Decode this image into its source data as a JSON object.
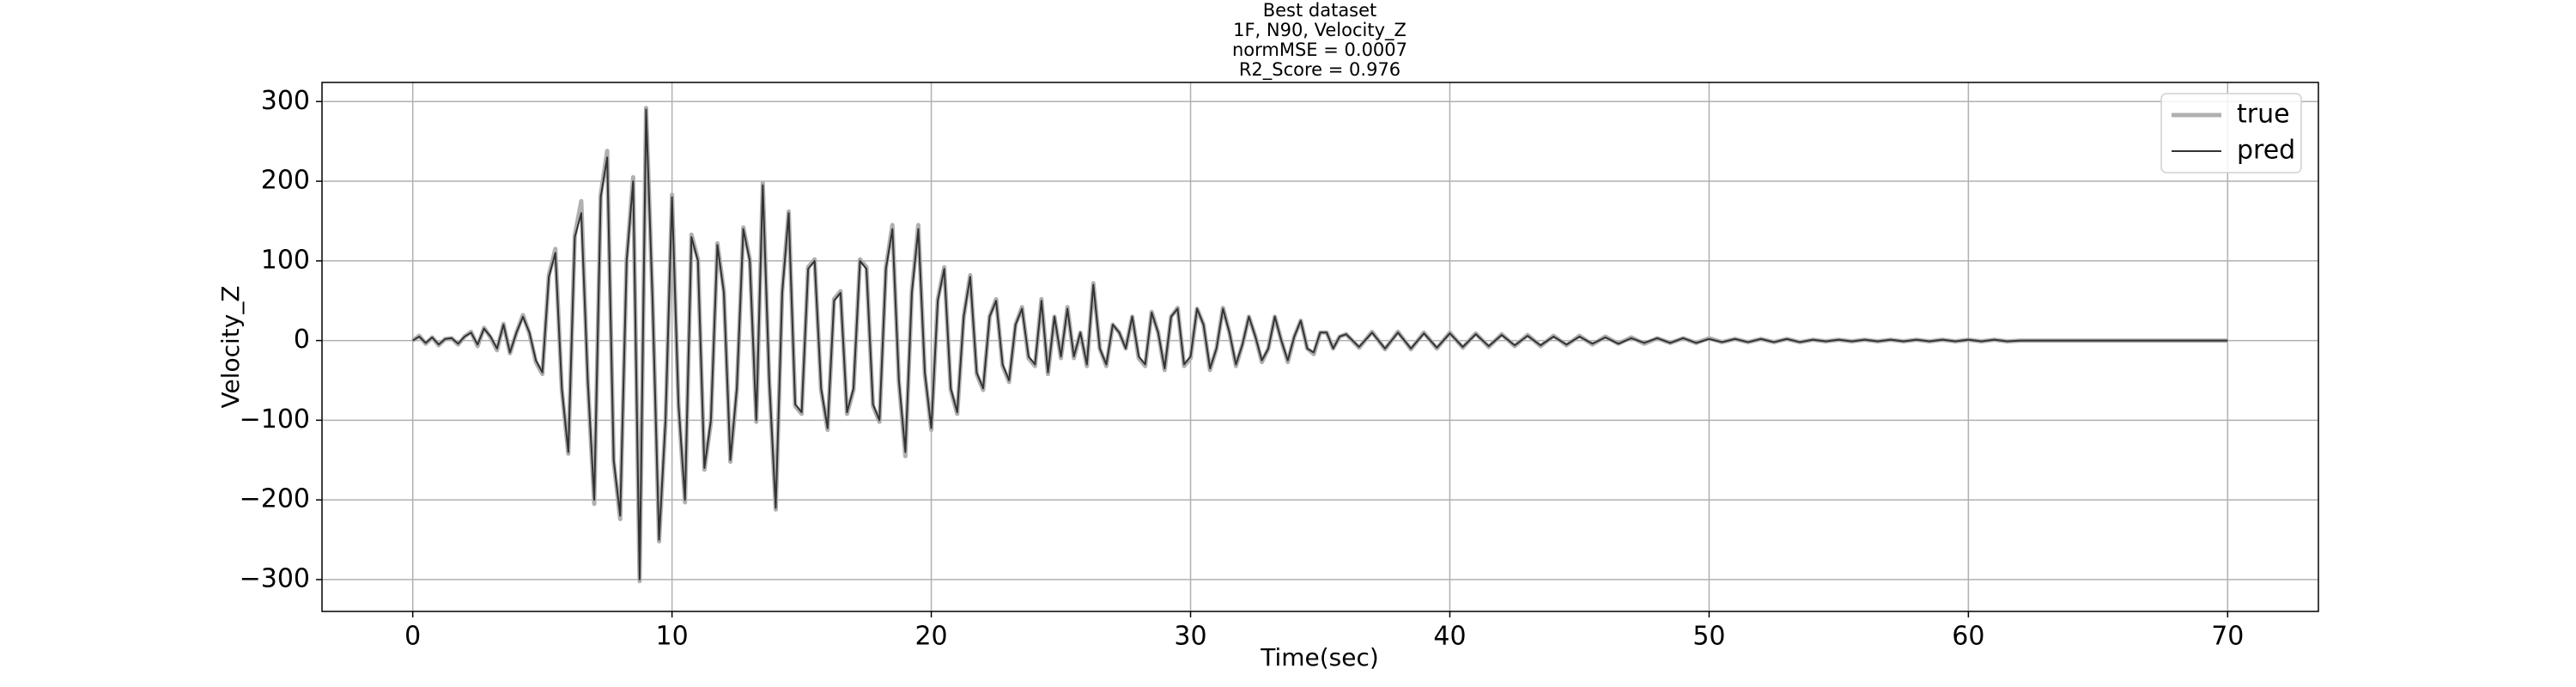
{
  "chart_data": {
    "type": "line",
    "title": [
      "Best dataset",
      "1F, N90, Velocity_Z",
      "normMSE = 0.0007",
      "R2_Score = 0.976"
    ],
    "xlabel": "Time(sec)",
    "ylabel": "Velocity_Z",
    "xlim": [
      -3.5,
      73.5
    ],
    "ylim": [
      -340,
      324
    ],
    "xticks": [
      0,
      10,
      20,
      30,
      40,
      50,
      60,
      70
    ],
    "yticks": [
      {
        "value": -300,
        "label": "−300"
      },
      {
        "value": -200,
        "label": "−200"
      },
      {
        "value": -100,
        "label": "−100"
      },
      0,
      100,
      200,
      300
    ],
    "grid": true,
    "legend": "upper right",
    "x": [
      0,
      0.25,
      0.5,
      0.75,
      1,
      1.25,
      1.5,
      1.75,
      2,
      2.25,
      2.5,
      2.75,
      3,
      3.25,
      3.5,
      3.75,
      4,
      4.25,
      4.5,
      4.75,
      5,
      5.25,
      5.5,
      5.75,
      6,
      6.25,
      6.5,
      6.75,
      7,
      7.25,
      7.5,
      7.75,
      8,
      8.25,
      8.5,
      8.75,
      9,
      9.25,
      9.5,
      9.75,
      10,
      10.25,
      10.5,
      10.75,
      11,
      11.25,
      11.5,
      11.75,
      12,
      12.25,
      12.5,
      12.75,
      13,
      13.25,
      13.5,
      13.75,
      14,
      14.25,
      14.5,
      14.75,
      15,
      15.25,
      15.5,
      15.75,
      16,
      16.25,
      16.5,
      16.75,
      17,
      17.25,
      17.5,
      17.75,
      18,
      18.25,
      18.5,
      18.75,
      19,
      19.25,
      19.5,
      19.75,
      20,
      20.25,
      20.5,
      20.75,
      21,
      21.25,
      21.5,
      21.75,
      22,
      22.25,
      22.5,
      22.75,
      23,
      23.25,
      23.5,
      23.75,
      24,
      24.25,
      24.5,
      24.75,
      25,
      25.25,
      25.5,
      25.75,
      26,
      26.25,
      26.5,
      26.75,
      27,
      27.25,
      27.5,
      27.75,
      28,
      28.25,
      28.5,
      28.75,
      29,
      29.25,
      29.5,
      29.75,
      30,
      30.25,
      30.5,
      30.75,
      31,
      31.25,
      31.5,
      31.75,
      32,
      32.25,
      32.5,
      32.75,
      33,
      33.25,
      33.5,
      33.75,
      34,
      34.25,
      34.5,
      34.75,
      35,
      35.25,
      35.5,
      35.75,
      36,
      36.5,
      37,
      37.5,
      38,
      38.5,
      39,
      39.5,
      40,
      40.5,
      41,
      41.5,
      42,
      42.5,
      43,
      43.5,
      44,
      44.5,
      45,
      45.5,
      46,
      46.5,
      47,
      47.5,
      48,
      48.5,
      49,
      49.5,
      50,
      50.5,
      51,
      51.5,
      52,
      52.5,
      53,
      53.5,
      54,
      54.5,
      55,
      55.5,
      56,
      56.5,
      57,
      57.5,
      58,
      58.5,
      59,
      59.5,
      60,
      60.5,
      61,
      61.5,
      62,
      62.5,
      63,
      63.5,
      64,
      64.5,
      65,
      65.5,
      66,
      66.5,
      67,
      67.5,
      68,
      68.5,
      69,
      69.5,
      70
    ],
    "series": [
      {
        "name": "true",
        "color": "#b0b0b0",
        "values": [
          0,
          6,
          -4,
          4,
          -6,
          2,
          3,
          -5,
          5,
          11,
          -7,
          16,
          4,
          -12,
          21,
          -16,
          10,
          32,
          9,
          -27,
          -42,
          82,
          115,
          -62,
          -142,
          132,
          175,
          -52,
          -205,
          183,
          238,
          -152,
          -224,
          102,
          205,
          -302,
          292,
          52,
          -252,
          -102,
          183,
          -82,
          -203,
          133,
          102,
          -162,
          -102,
          122,
          62,
          -152,
          -62,
          142,
          102,
          -102,
          198,
          -52,
          -212,
          62,
          162,
          -82,
          -92,
          92,
          102,
          -62,
          -112,
          52,
          62,
          -92,
          -62,
          102,
          92,
          -82,
          -102,
          92,
          145,
          -52,
          -145,
          62,
          145,
          -42,
          -112,
          52,
          92,
          -62,
          -92,
          30,
          82,
          -42,
          -62,
          30,
          52,
          -32,
          -52,
          20,
          42,
          -22,
          -32,
          52,
          -42,
          30,
          -22,
          42,
          -22,
          10,
          -32,
          72,
          -10,
          -32,
          20,
          10,
          -10,
          30,
          -22,
          -32,
          36,
          10,
          -37,
          30,
          41,
          -32,
          -22,
          40,
          20,
          -37,
          -10,
          41,
          10,
          -32,
          -5,
          30,
          5,
          -27,
          -10,
          30,
          0,
          -27,
          5,
          25,
          -10,
          -17,
          10,
          10,
          -10,
          5,
          8,
          -9,
          11,
          -11,
          11,
          -11,
          10,
          -10,
          10,
          -9,
          9,
          -8,
          8,
          -7,
          7,
          -7,
          6,
          -6,
          6,
          -5,
          5,
          -4,
          4,
          -4,
          3,
          -3,
          3,
          -3,
          3,
          -2,
          2,
          -2,
          2,
          -2,
          2,
          -2,
          1,
          -1,
          1,
          -1,
          1,
          -1,
          1,
          -1,
          1,
          -1,
          1,
          -1,
          1,
          -1,
          1,
          -1,
          0,
          0,
          0,
          0,
          0,
          0,
          0,
          0,
          0,
          0,
          0,
          0,
          0,
          0,
          0,
          0,
          0
        ]
      },
      {
        "name": "pred",
        "color": "#333333",
        "values": [
          0,
          5,
          -3,
          4,
          -5,
          2,
          3,
          -4,
          5,
          10,
          -5,
          15,
          5,
          -10,
          20,
          -15,
          10,
          30,
          10,
          -25,
          -40,
          80,
          110,
          -60,
          -140,
          130,
          160,
          -50,
          -200,
          180,
          230,
          -150,
          -220,
          100,
          200,
          -300,
          290,
          50,
          -250,
          -100,
          180,
          -80,
          -200,
          130,
          100,
          -160,
          -100,
          120,
          60,
          -150,
          -60,
          140,
          100,
          -100,
          195,
          -50,
          -210,
          60,
          160,
          -80,
          -90,
          90,
          100,
          -60,
          -110,
          50,
          60,
          -90,
          -60,
          100,
          90,
          -80,
          -100,
          90,
          140,
          -50,
          -140,
          60,
          140,
          -40,
          -110,
          50,
          90,
          -60,
          -90,
          30,
          80,
          -40,
          -60,
          30,
          50,
          -30,
          -50,
          20,
          40,
          -20,
          -30,
          50,
          -40,
          30,
          -20,
          40,
          -20,
          10,
          -30,
          70,
          -10,
          -30,
          20,
          10,
          -10,
          30,
          -20,
          -30,
          35,
          10,
          -35,
          30,
          40,
          -30,
          -20,
          40,
          20,
          -35,
          -10,
          40,
          10,
          -30,
          -5,
          30,
          5,
          -25,
          -10,
          30,
          0,
          -25,
          5,
          25,
          -10,
          -15,
          10,
          10,
          -10,
          5,
          8,
          -8,
          10,
          -10,
          10,
          -10,
          9,
          -9,
          9,
          -8,
          8,
          -7,
          7,
          -6,
          6,
          -6,
          5,
          -5,
          5,
          -4,
          4,
          -4,
          3,
          -3,
          3,
          -3,
          3,
          -3,
          2,
          -2,
          2,
          -2,
          2,
          -2,
          2,
          -2,
          1,
          -1,
          1,
          -1,
          1,
          -1,
          1,
          -1,
          1,
          -1,
          1,
          -1,
          1,
          -1,
          1,
          -1,
          0,
          0,
          0,
          0,
          0,
          0,
          0,
          0,
          0,
          0,
          0,
          0,
          0,
          0,
          0,
          0,
          0
        ]
      }
    ]
  }
}
